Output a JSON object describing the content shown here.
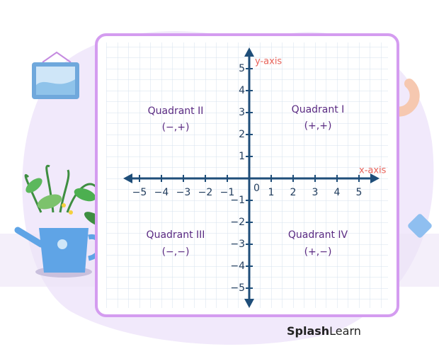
{
  "axes": {
    "x_label": "x-axis",
    "y_label": "y-axis",
    "origin": "0",
    "x_ticks": [
      "−5",
      "−4",
      "−3",
      "−2",
      "−1",
      "1",
      "2",
      "3",
      "4",
      "5"
    ],
    "y_ticks": [
      "5",
      "4",
      "3",
      "2",
      "1",
      "−1",
      "−2",
      "−3",
      "−4",
      "−5"
    ]
  },
  "quadrants": [
    {
      "name": "Quadrant II",
      "signs": "(−,+)"
    },
    {
      "name": "Quadrant I",
      "signs": "(+,+)"
    },
    {
      "name": "Quadrant III",
      "signs": "(−,−)"
    },
    {
      "name": "Quadrant IV",
      "signs": "(+,−)"
    }
  ],
  "brand": {
    "bold": "Splash",
    "regular": "Learn"
  }
}
